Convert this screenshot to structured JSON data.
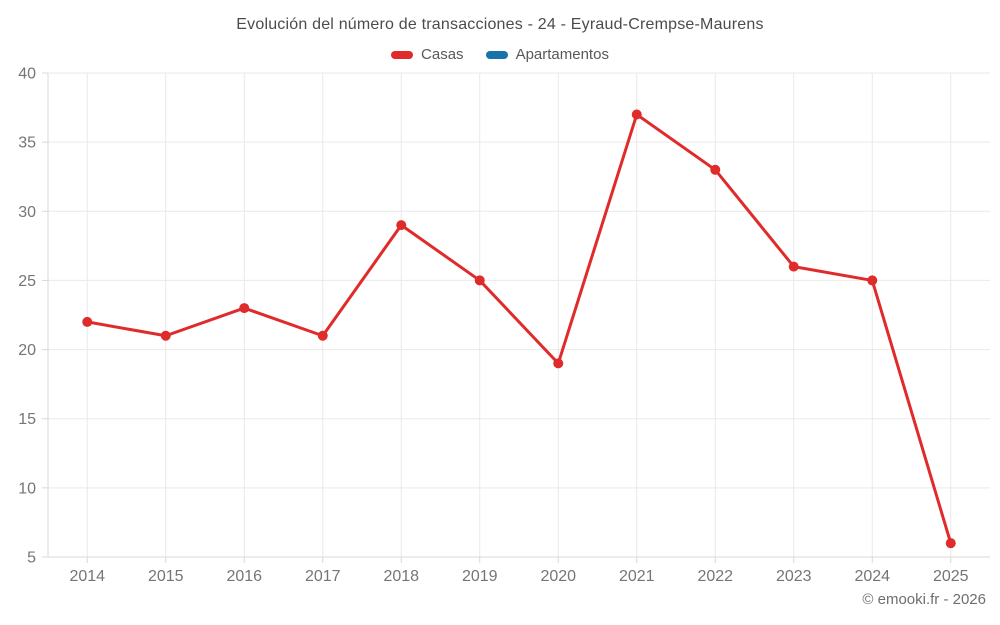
{
  "chart_data": {
    "type": "line",
    "title": "Evolución del número de transacciones - 24 - Eyraud-Crempse-Maurens",
    "categories": [
      "2014",
      "2015",
      "2016",
      "2017",
      "2018",
      "2019",
      "2020",
      "2021",
      "2022",
      "2023",
      "2024",
      "2025"
    ],
    "series": [
      {
        "name": "Casas",
        "color": "#e02b2b",
        "values": [
          22,
          21,
          23,
          21,
          29,
          25,
          19,
          37,
          33,
          26,
          25,
          6
        ]
      },
      {
        "name": "Apartamentos",
        "color": "#1873a8",
        "values": []
      }
    ],
    "ylim": [
      5,
      40
    ],
    "yticks": [
      5,
      10,
      15,
      20,
      25,
      30,
      35,
      40
    ],
    "grid": true,
    "grid_color": "#e9e9e9",
    "axis_color": "#d9d9d9",
    "tick_text_color": "#757575",
    "legend_position": "top",
    "marker_radius": 5,
    "line_width": 3
  },
  "footer": {
    "credit": "© emooki.fr - 2026"
  }
}
